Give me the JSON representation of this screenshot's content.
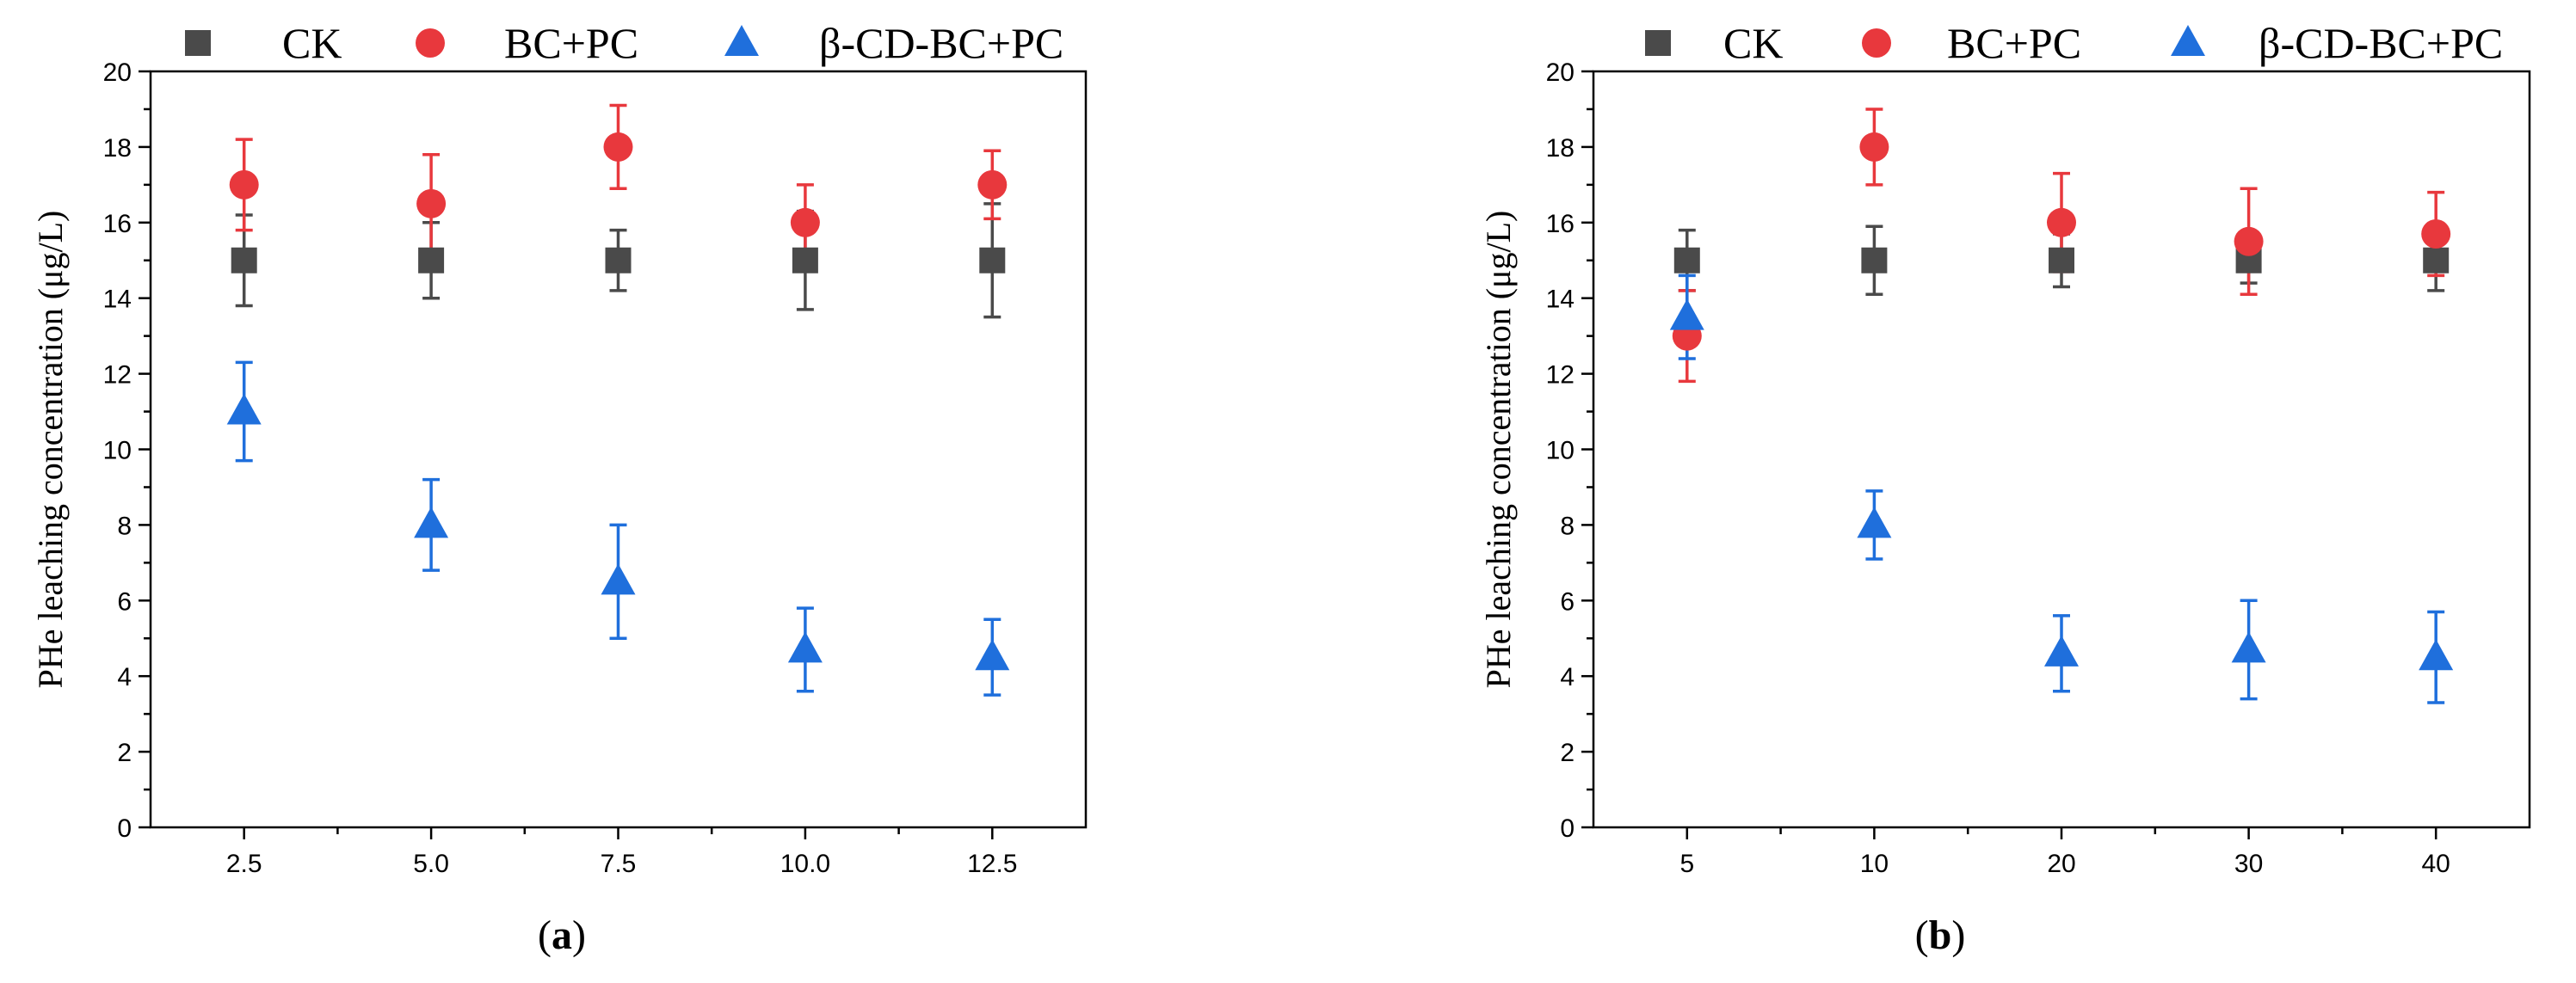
{
  "chart_data": [
    {
      "type": "scatter",
      "panel_label": "(a)",
      "panel_letter": "a",
      "ylabel": "PHe leaching concentration (μg/L)",
      "xlabel": "",
      "ylim": [
        0,
        20
      ],
      "yticks": [
        0,
        2,
        4,
        6,
        8,
        10,
        12,
        14,
        16,
        18,
        20
      ],
      "ytick_labels": [
        "0",
        "2",
        "4",
        "6",
        "8",
        "10",
        "12",
        "14",
        "16",
        "18",
        "20"
      ],
      "categories": [
        "2.5",
        "5.0",
        "7.5",
        "10.0",
        "12.5"
      ],
      "legend_position": "top",
      "series": [
        {
          "name": "CK",
          "marker": "square",
          "color": "#4a4a4a",
          "values": [
            15,
            15,
            15,
            15,
            15
          ],
          "errors": [
            1.2,
            1.0,
            0.8,
            1.3,
            1.5
          ]
        },
        {
          "name": "BC+PC",
          "marker": "circle",
          "color": "#e8383d",
          "values": [
            17,
            16.5,
            18,
            16,
            17
          ],
          "errors": [
            1.2,
            1.3,
            1.1,
            1.0,
            0.9
          ]
        },
        {
          "name": "β-CD-BC+PC",
          "marker": "triangle",
          "color": "#1f6fdc",
          "values": [
            11,
            8,
            6.5,
            4.7,
            4.5
          ],
          "errors": [
            1.3,
            1.2,
            1.5,
            1.1,
            1.0
          ]
        }
      ]
    },
    {
      "type": "scatter",
      "panel_label": "(b)",
      "panel_letter": "b",
      "ylabel": "PHe leaching concentration (μg/L)",
      "xlabel": "",
      "ylim": [
        0,
        20
      ],
      "yticks": [
        0,
        2,
        4,
        6,
        8,
        10,
        12,
        14,
        16,
        18,
        20
      ],
      "ytick_labels": [
        "0",
        "2",
        "4",
        "6",
        "8",
        "10",
        "12",
        "14",
        "16",
        "18",
        "20"
      ],
      "categories": [
        "5",
        "10",
        "20",
        "30",
        "40"
      ],
      "legend_position": "top",
      "series": [
        {
          "name": "CK",
          "marker": "square",
          "color": "#4a4a4a",
          "values": [
            15,
            15,
            15,
            15,
            15
          ],
          "errors": [
            0.8,
            0.9,
            0.7,
            0.6,
            0.8
          ]
        },
        {
          "name": "BC+PC",
          "marker": "circle",
          "color": "#e8383d",
          "values": [
            13,
            18,
            16,
            15.5,
            15.7
          ],
          "errors": [
            1.2,
            1.0,
            1.3,
            1.4,
            1.1
          ]
        },
        {
          "name": "β-CD-BC+PC",
          "marker": "triangle",
          "color": "#1f6fdc",
          "values": [
            13.5,
            8,
            4.6,
            4.7,
            4.5
          ],
          "errors": [
            1.1,
            0.9,
            1.0,
            1.3,
            1.2
          ]
        }
      ]
    }
  ]
}
